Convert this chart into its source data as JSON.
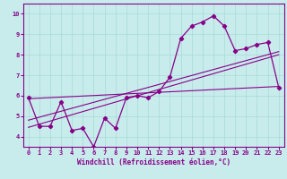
{
  "xlabel": "Windchill (Refroidissement éolien,°C)",
  "bg_color": "#c8ecec",
  "grid_color": "#a8d8d8",
  "line_color": "#880088",
  "spine_color": "#880088",
  "xlim": [
    -0.5,
    23.5
  ],
  "ylim": [
    3.5,
    10.5
  ],
  "xticks": [
    0,
    1,
    2,
    3,
    4,
    5,
    6,
    7,
    8,
    9,
    10,
    11,
    12,
    13,
    14,
    15,
    16,
    17,
    18,
    19,
    20,
    21,
    22,
    23
  ],
  "yticks": [
    4,
    5,
    6,
    7,
    8,
    9,
    10
  ],
  "curve1_x": [
    0,
    1,
    2,
    3,
    4,
    5,
    6,
    7,
    8,
    9,
    10,
    11,
    12,
    13,
    14,
    15,
    16,
    17,
    18,
    19,
    20,
    21,
    22,
    23
  ],
  "curve1_y": [
    5.9,
    4.5,
    4.5,
    5.7,
    4.3,
    4.4,
    3.5,
    4.9,
    4.4,
    5.9,
    6.0,
    5.9,
    6.2,
    6.9,
    8.8,
    9.4,
    9.6,
    9.9,
    9.4,
    8.2,
    8.3,
    8.5,
    8.6,
    6.4
  ],
  "line1_x": [
    0,
    23
  ],
  "line1_y": [
    5.85,
    6.45
  ],
  "line2_x": [
    0,
    23
  ],
  "line2_y": [
    4.8,
    8.15
  ],
  "line3_x": [
    0,
    23
  ],
  "line3_y": [
    4.45,
    8.0
  ]
}
